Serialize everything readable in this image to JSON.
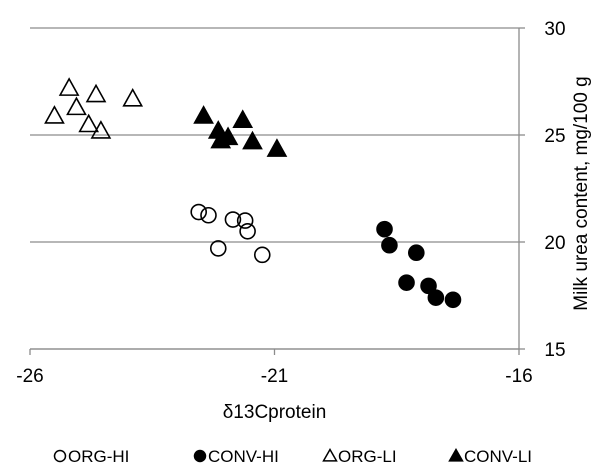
{
  "chart_data": {
    "type": "scatter",
    "title": "",
    "xlabel": "δ13Cprotein",
    "ylabel": "Milk urea content, mg/100 g",
    "xlim": [
      -26,
      -16
    ],
    "ylim": [
      15,
      30
    ],
    "x_ticks": [
      "-26",
      "-21",
      "-16"
    ],
    "y_ticks": [
      "15",
      "20",
      "25",
      "30"
    ],
    "y_axis_side": "right",
    "grid": "horizontal",
    "legend_position": "bottom",
    "series": [
      {
        "name": "ORG-HI",
        "marker": "circle-open",
        "color": "#000000",
        "points": [
          {
            "x": -22.55,
            "y": 21.4
          },
          {
            "x": -22.35,
            "y": 21.25
          },
          {
            "x": -22.15,
            "y": 19.7
          },
          {
            "x": -21.85,
            "y": 21.05
          },
          {
            "x": -21.6,
            "y": 21.0
          },
          {
            "x": -21.55,
            "y": 20.5
          },
          {
            "x": -21.25,
            "y": 19.4
          }
        ]
      },
      {
        "name": "CONV-HI",
        "marker": "circle-filled",
        "color": "#000000",
        "points": [
          {
            "x": -18.75,
            "y": 20.6
          },
          {
            "x": -18.65,
            "y": 19.85
          },
          {
            "x": -18.1,
            "y": 19.5
          },
          {
            "x": -18.3,
            "y": 18.1
          },
          {
            "x": -17.85,
            "y": 17.95
          },
          {
            "x": -17.7,
            "y": 17.4
          },
          {
            "x": -17.35,
            "y": 17.3
          }
        ]
      },
      {
        "name": "ORG-LI",
        "marker": "triangle-open",
        "color": "#000000",
        "points": [
          {
            "x": -25.2,
            "y": 27.2
          },
          {
            "x": -25.05,
            "y": 26.3
          },
          {
            "x": -24.65,
            "y": 26.9
          },
          {
            "x": -25.5,
            "y": 25.9
          },
          {
            "x": -24.8,
            "y": 25.5
          },
          {
            "x": -24.55,
            "y": 25.2
          },
          {
            "x": -23.9,
            "y": 26.7
          }
        ]
      },
      {
        "name": "CONV-LI",
        "marker": "triangle-filled",
        "color": "#000000",
        "points": [
          {
            "x": -22.45,
            "y": 25.9
          },
          {
            "x": -22.15,
            "y": 25.2
          },
          {
            "x": -21.95,
            "y": 24.9
          },
          {
            "x": -22.1,
            "y": 24.75
          },
          {
            "x": -21.65,
            "y": 25.7
          },
          {
            "x": -21.45,
            "y": 24.7
          },
          {
            "x": -20.95,
            "y": 24.35
          }
        ]
      }
    ]
  }
}
